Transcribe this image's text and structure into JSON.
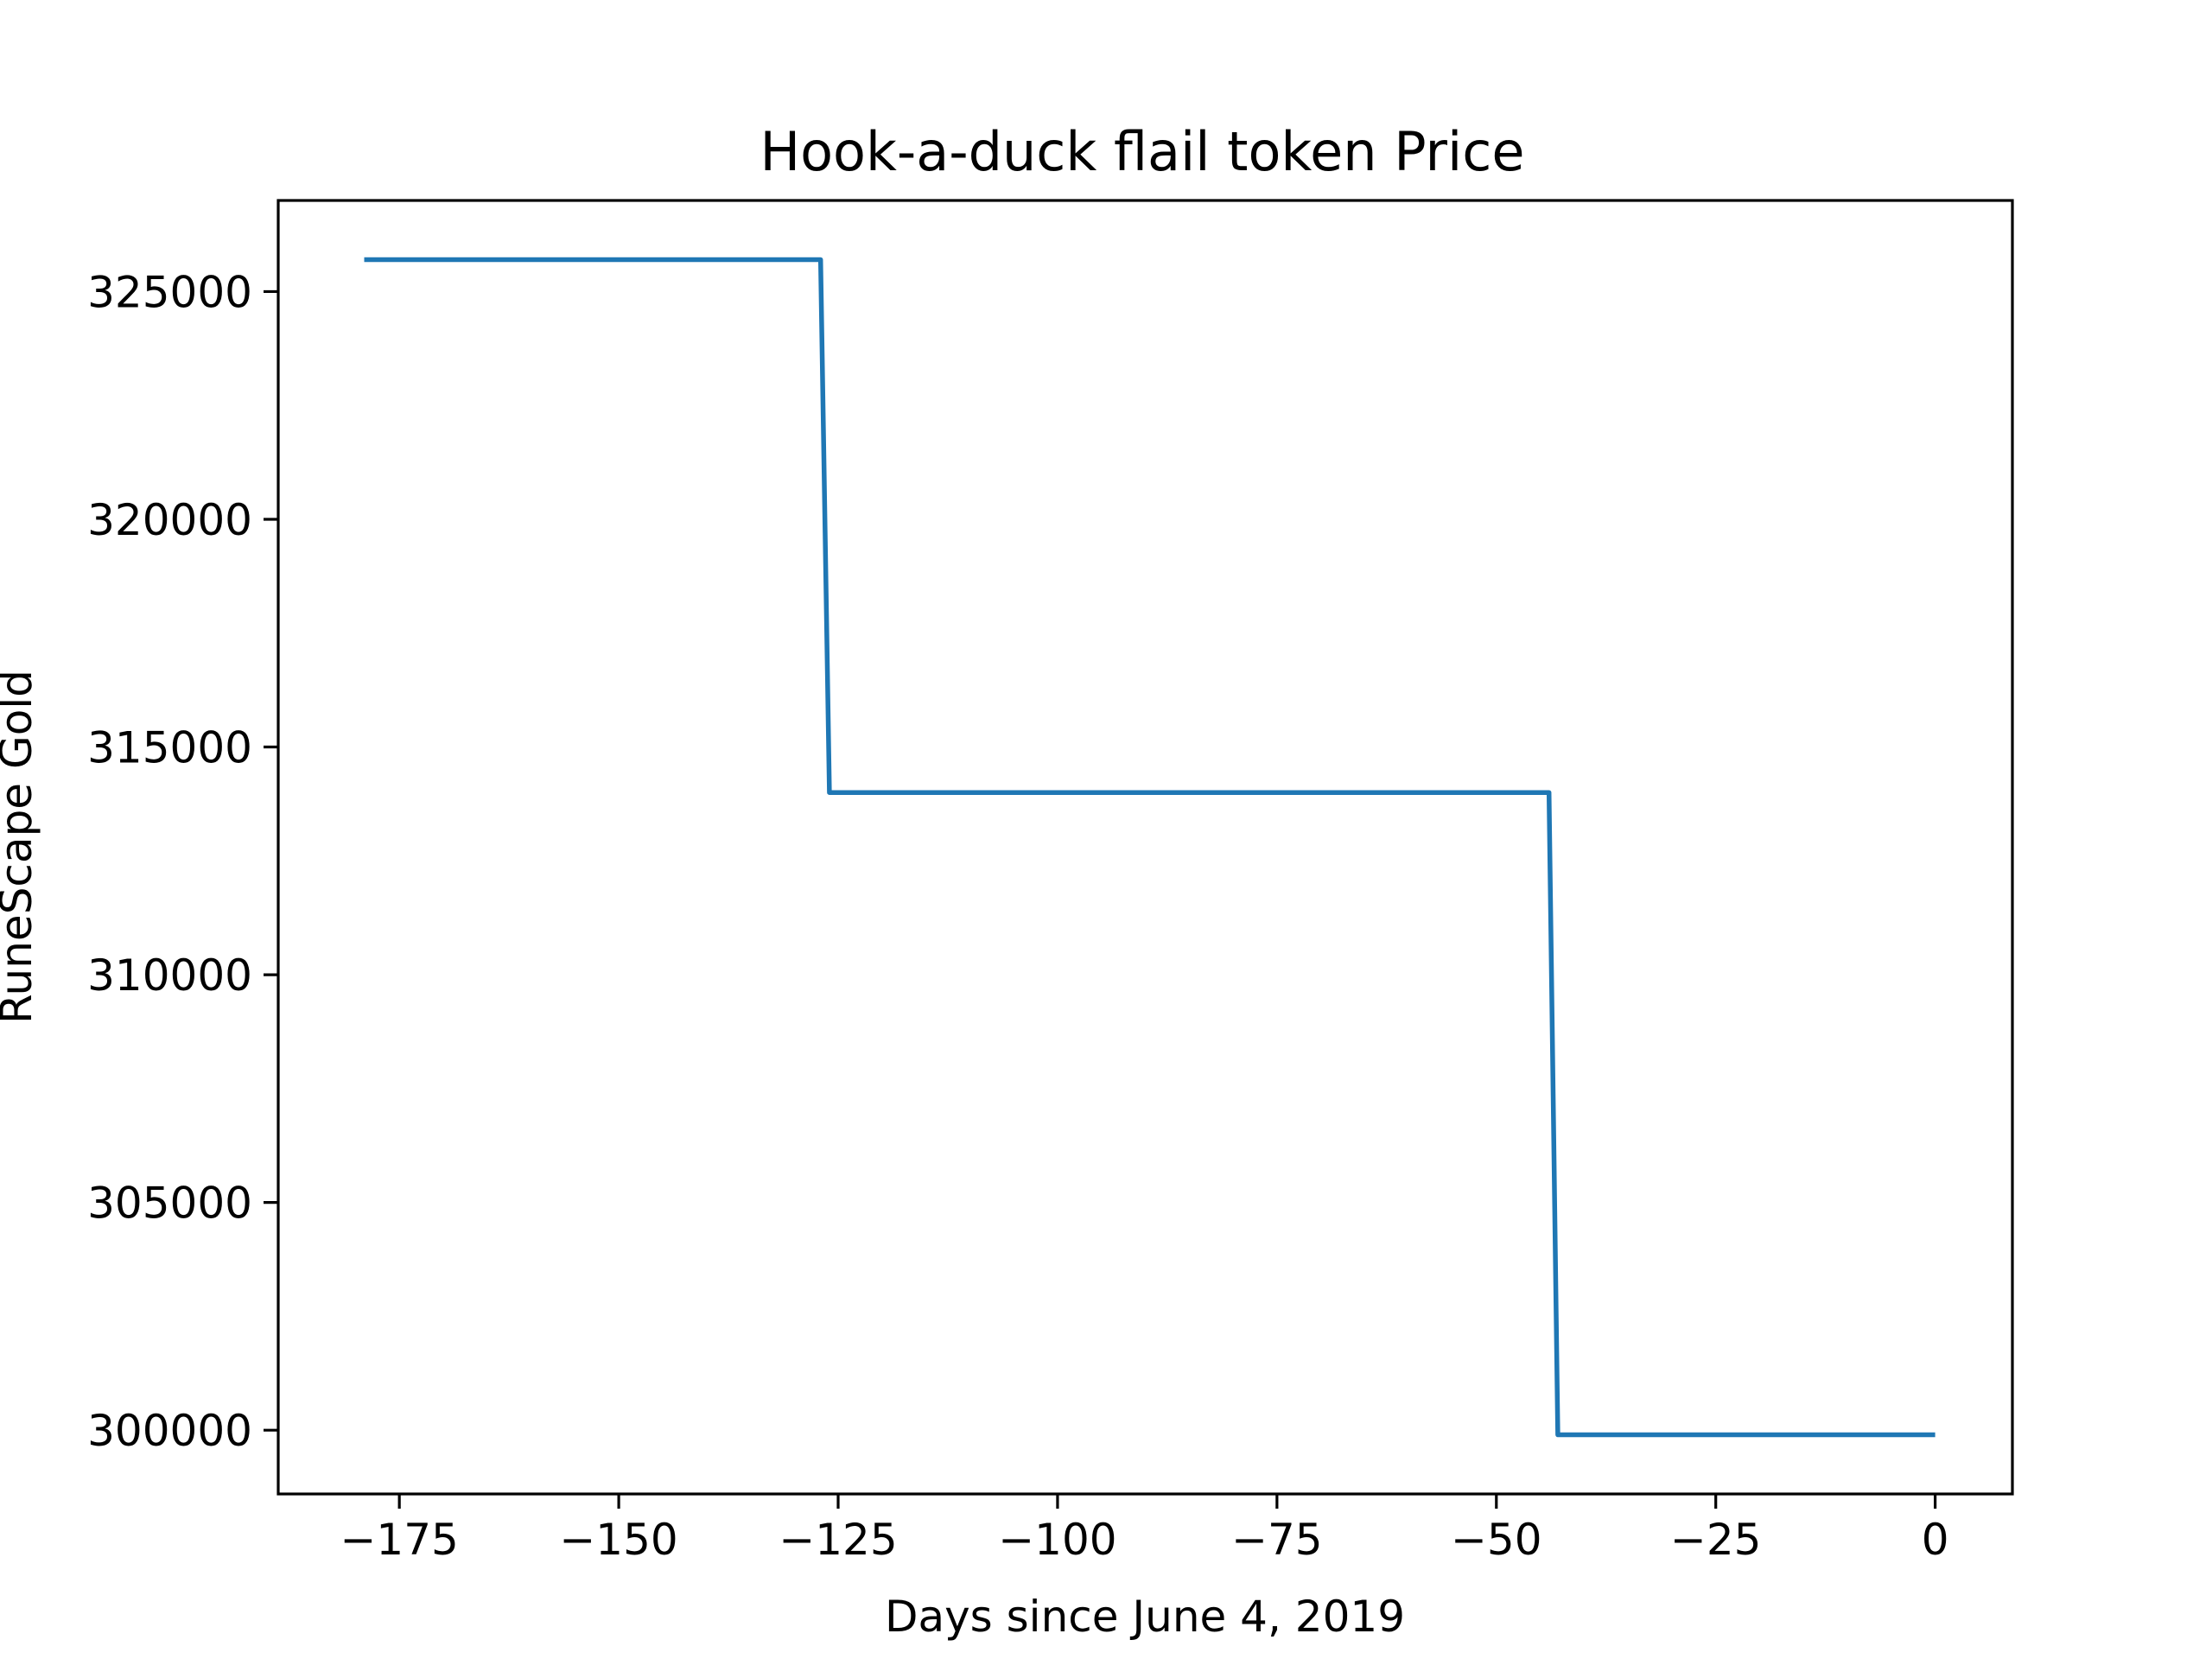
{
  "chart_data": {
    "type": "line",
    "title": "Hook-a-duck flail token Price",
    "xlabel": "Days since June 4, 2019",
    "ylabel": "RuneScape Gold",
    "xlim": [
      -188.8,
      8.8
    ],
    "ylim": [
      298600,
      327000
    ],
    "xticks": [
      -175,
      -150,
      -125,
      -100,
      -75,
      -50,
      -25,
      0
    ],
    "xtick_labels": [
      "−175",
      "−150",
      "−125",
      "−100",
      "−75",
      "−50",
      "−25",
      "0"
    ],
    "yticks": [
      300000,
      305000,
      310000,
      315000,
      320000,
      325000
    ],
    "ytick_labels": [
      "300000",
      "305000",
      "310000",
      "315000",
      "320000",
      "325000"
    ],
    "grid": false,
    "series": [
      {
        "color": "#1f77b4",
        "x": [
          -179,
          -127,
          -126,
          -44,
          -43,
          0
        ],
        "y": [
          325700,
          325700,
          314000,
          314000,
          299900,
          299900
        ]
      }
    ]
  }
}
